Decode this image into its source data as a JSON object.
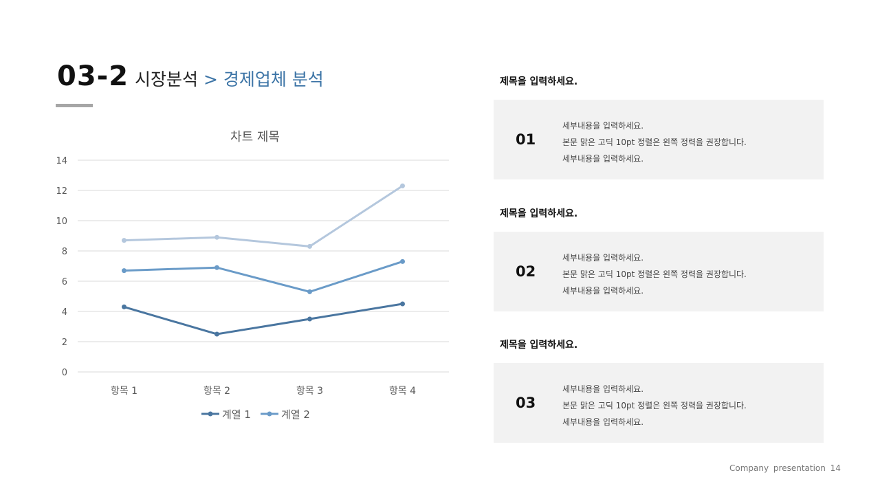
{
  "header": {
    "number": "03-2",
    "title": "시장분석",
    "separator": " > ",
    "subtitle": "경제업체 분석",
    "accent": "#3c74a6"
  },
  "chart_data": {
    "type": "line",
    "title": "차트 제목",
    "categories": [
      "항목 1",
      "항목 2",
      "항목 3",
      "항목 4"
    ],
    "ylim": [
      0,
      14
    ],
    "yticks": [
      0,
      2,
      4,
      6,
      8,
      10,
      12,
      14
    ],
    "grid": true,
    "legend_position": "bottom",
    "series": [
      {
        "name": "계열 1",
        "values": [
          4.3,
          2.5,
          3.5,
          4.5
        ],
        "color": "#4a76a0"
      },
      {
        "name": "계열 2",
        "values": [
          6.7,
          6.9,
          5.3,
          7.3
        ],
        "color": "#6a9bc8"
      },
      {
        "values": [
          8.7,
          8.9,
          8.3,
          12.3
        ],
        "color": "#b4c7dd"
      }
    ]
  },
  "sections": [
    {
      "title": "제목을 입력하세요.",
      "number": "01",
      "lines": [
        "세부내용을 입력하세요.",
        "본문 맑은 고딕 10pt 정렬은 왼쪽 정력을 권장합니다.",
        "세부내용을 입력하세요."
      ]
    },
    {
      "title": "제목을 입력하세요.",
      "number": "02",
      "lines": [
        "세부내용을 입력하세요.",
        "본문 맑은 고딕 10pt 정렬은 왼쪽 정력을 권장합니다.",
        "세부내용을 입력하세요."
      ]
    },
    {
      "title": "제목을 입력하세요.",
      "number": "03",
      "lines": [
        "세부내용을 입력하세요.",
        "본문 맑은 고딕 10pt 정렬은 왼쪽 정력을 권장합니다.",
        "세부내용을 입력하세요."
      ]
    }
  ],
  "footer": "Company presentation 14"
}
